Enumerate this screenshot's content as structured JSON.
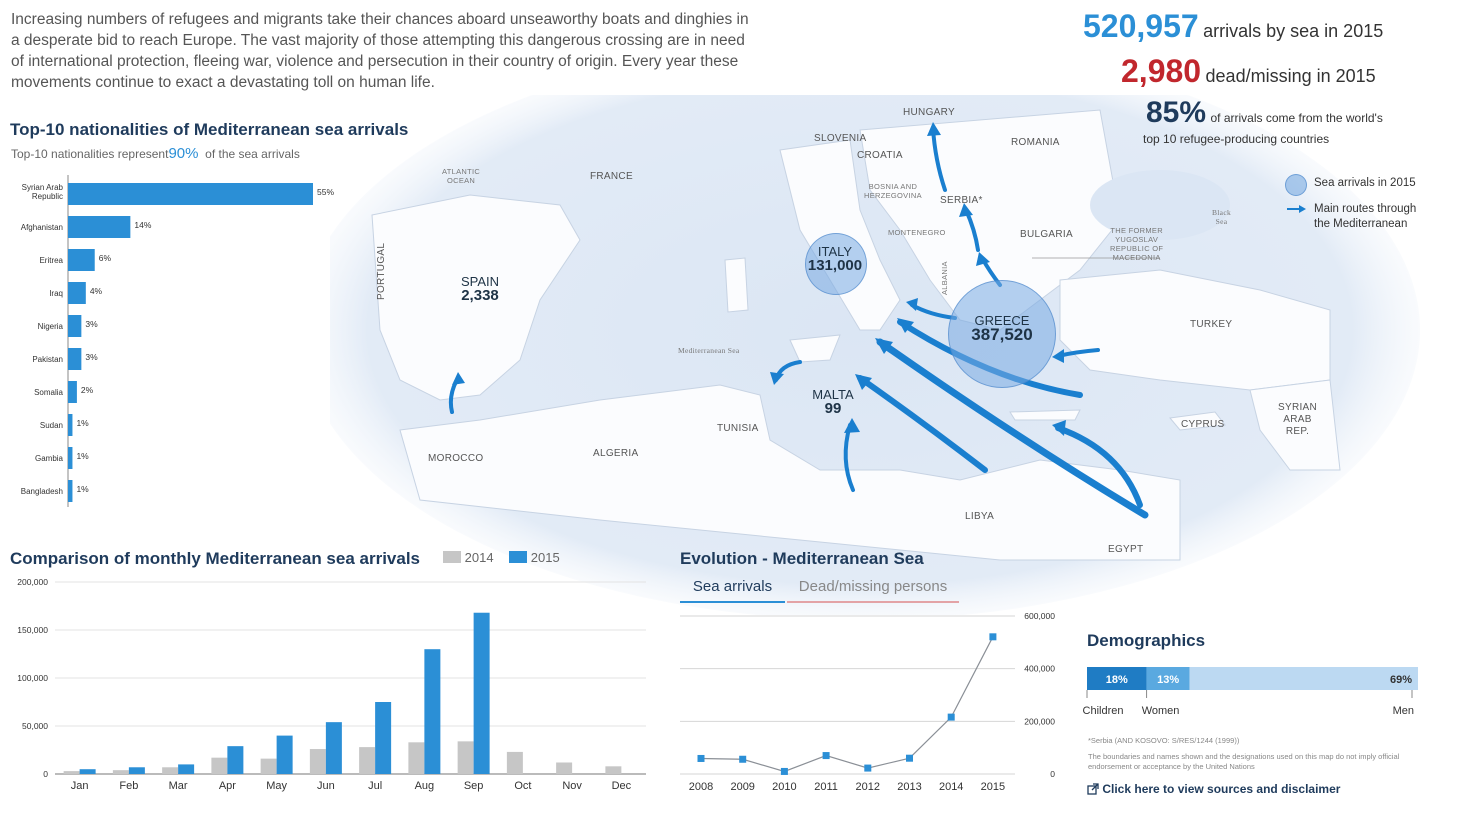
{
  "intro": "Increasing numbers of refugees and migrants take their chances aboard unseaworthy boats and dinghies in a desperate bid to reach Europe. The vast majority of those attempting this dangerous crossing are in need of international protection, fleeing war, violence and persecution in their country of origin. Every year these movements continue to exact a devastating toll on human life.",
  "stats": {
    "arrivals_value": "520,957",
    "arrivals_label": "arrivals by sea in 2015",
    "dead_value": "2,980",
    "dead_label": "dead/missing in 2015",
    "pct_value": "85%",
    "pct_label_1": "of arrivals come from the world's",
    "pct_label_2": "top 10 refugee-producing countries"
  },
  "colors": {
    "accent": "#2b8fd6",
    "dark_navy": "#1f3b5c",
    "red": "#c1272d",
    "grey": "#c6c6c6",
    "sea": "#dbe6f4",
    "land": "#ffffff"
  },
  "legend": {
    "sea_arrivals": "Sea arrivals in 2015",
    "routes_1": "Main routes through",
    "routes_2": "the Mediterranean"
  },
  "map": {
    "italy": {
      "name": "ITALY",
      "value": "131,000"
    },
    "greece": {
      "name": "GREECE",
      "value": "387,520"
    },
    "spain": {
      "name": "SPAIN",
      "value": "2,338"
    },
    "malta": {
      "name": "MALTA",
      "value": "99"
    },
    "labels": {
      "atlantic_1": "ATLANTIC",
      "atlantic_2": "OCEAN",
      "france": "FRANCE",
      "portugal": "PORTUGAL",
      "morocco": "MOROCCO",
      "algeria": "ALGERIA",
      "tunisia": "TUNISIA",
      "libya": "LIBYA",
      "egypt": "EGYPT",
      "slovenia": "SLOVENIA",
      "croatia": "CROATIA",
      "hungary": "HUNGARY",
      "romania": "ROMANIA",
      "serbia": "SERBIA*",
      "bulgaria": "BULGARIA",
      "bosnia_1": "BOSNIA AND",
      "bosnia_2": "HERZEGOVINA",
      "montenegro": "MONTENEGRO",
      "albania": "ALBANIA",
      "fyrom_1": "THE FORMER",
      "fyrom_2": "YUGOSLAV",
      "fyrom_3": "REPUBLIC OF",
      "fyrom_4": "MACEDONIA",
      "turkey": "TURKEY",
      "cyprus": "CYPRUS",
      "syria_1": "SYRIAN",
      "syria_2": "ARAB",
      "syria_3": "REP.",
      "black_sea_1": "Black",
      "black_sea_2": "Sea",
      "med_sea": "Mediterranean Sea"
    }
  },
  "chart_data": [
    {
      "type": "bar",
      "title": "Top-10 nationalities of Mediterranean sea arrivals",
      "subtitle_pre": "Top-10 nationalities represent",
      "subtitle_value": "90%",
      "subtitle_post": "of the sea arrivals",
      "orientation": "horizontal",
      "categories": [
        "Syrian Arab Republic",
        "Afghanistan",
        "Eritrea",
        "Iraq",
        "Nigeria",
        "Pakistan",
        "Somalia",
        "Sudan",
        "Gambia",
        "Bangladesh"
      ],
      "values": [
        55,
        14,
        6,
        4,
        3,
        3,
        2,
        1,
        1,
        1
      ],
      "value_labels": [
        "55%",
        "14%",
        "6%",
        "4%",
        "3%",
        "3%",
        "2%",
        "1%",
        "1%",
        "1%"
      ]
    },
    {
      "type": "bar",
      "title": "Comparison of monthly Mediterranean sea arrivals",
      "categories": [
        "Jan",
        "Feb",
        "Mar",
        "Apr",
        "May",
        "Jun",
        "Jul",
        "Aug",
        "Sep",
        "Oct",
        "Nov",
        "Dec"
      ],
      "series": [
        {
          "name": "2014",
          "color": "#c6c6c6",
          "values": [
            3000,
            4000,
            7000,
            17000,
            16000,
            26000,
            28000,
            33000,
            34000,
            23000,
            12000,
            8000
          ]
        },
        {
          "name": "2015",
          "color": "#2b8fd6",
          "values": [
            5000,
            7000,
            10000,
            29000,
            40000,
            54000,
            75000,
            130000,
            168000,
            null,
            null,
            null
          ]
        }
      ],
      "yticks": [
        "0",
        "50,000",
        "100,000",
        "150,000",
        "200,000"
      ],
      "ylim": [
        0,
        200000
      ]
    },
    {
      "type": "line",
      "title": "Evolution - Mediterranean Sea",
      "tabs": [
        "Sea arrivals",
        "Dead/missing persons"
      ],
      "x": [
        "2008",
        "2009",
        "2010",
        "2011",
        "2012",
        "2013",
        "2014",
        "2015"
      ],
      "values": [
        59000,
        56000,
        9700,
        70000,
        22500,
        60000,
        216000,
        520957
      ],
      "yticks": [
        "0",
        "200,000",
        "400,000",
        "600,000"
      ],
      "ylim": [
        0,
        600000
      ]
    },
    {
      "type": "bar",
      "title": "Demographics",
      "orientation": "stacked-horizontal",
      "categories": [
        "Children",
        "Women",
        "Men"
      ],
      "values": [
        18,
        13,
        69
      ],
      "value_labels": [
        "18%",
        "13%",
        "69%"
      ],
      "colors": [
        "#1f7cc4",
        "#5aa9e0",
        "#bcd9f2"
      ]
    }
  ],
  "footnote_1": "*Serbia (AND KOSOVO: S/RES/1244 (1999))",
  "footnote_2": "The boundaries and names shown and the designations used on this map do not imply official endorsement or acceptance by the United Nations",
  "sources_link": "Click here to view sources and disclaimer"
}
